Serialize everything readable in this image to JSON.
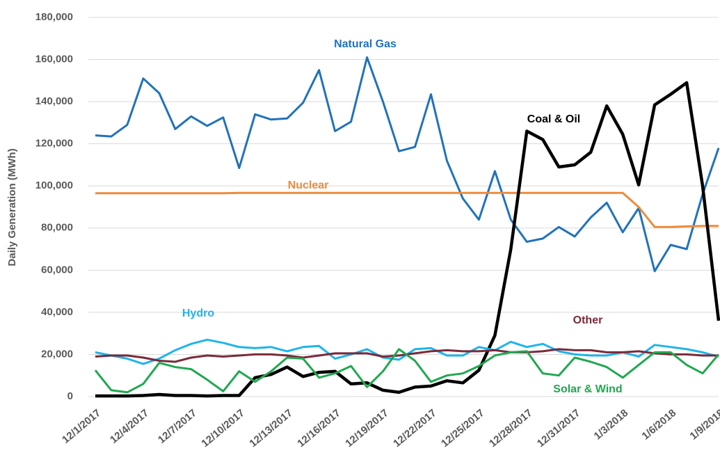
{
  "chart_data": {
    "type": "line",
    "y_label": "Daily Generation (MWh)",
    "categories": [
      "12/1/2017",
      null,
      null,
      "12/4/2017",
      null,
      null,
      "12/7/2017",
      null,
      null,
      "12/10/2017",
      null,
      null,
      "12/13/2017",
      null,
      null,
      "12/16/2017",
      null,
      null,
      "12/19/2017",
      null,
      null,
      "12/22/2017",
      null,
      null,
      "12/25/2017",
      null,
      null,
      "12/28/2017",
      null,
      null,
      "12/31/2017",
      null,
      null,
      "1/3/2018",
      null,
      null,
      "1/6/2018",
      null,
      null,
      "1/9/2018"
    ],
    "ylim": [
      0,
      180000
    ],
    "yticks": [
      0,
      {
        "value": 20000,
        "label": "20,000"
      },
      {
        "value": 40000,
        "label": "40,000"
      },
      {
        "value": 60000,
        "label": "60,000"
      },
      {
        "value": 80000,
        "label": "80,000"
      },
      {
        "value": 100000,
        "label": "100,000"
      },
      {
        "value": 120000,
        "label": "120,000"
      },
      {
        "value": 140000,
        "label": "140,000"
      },
      {
        "value": 160000,
        "label": "160,000"
      },
      {
        "value": 180000,
        "label": "180,000"
      }
    ],
    "grid": true,
    "series": [
      {
        "name": "Natural Gas",
        "color": "#2072ba",
        "values": [
          124000,
          123500,
          129000,
          151000,
          144000,
          127000,
          133000,
          128500,
          132500,
          108500,
          134000,
          131500,
          132000,
          139500,
          155000,
          126000,
          130500,
          161000,
          140000,
          116500,
          118500,
          143500,
          112000,
          94000,
          84000,
          107000,
          84000,
          73500,
          75000,
          80500,
          76000,
          85000,
          92000,
          78000,
          89500,
          59500,
          72000,
          70000,
          96000,
          118000
        ]
      },
      {
        "name": "Nuclear",
        "color": "#ed8b3c",
        "values": [
          96500,
          96500,
          96500,
          96500,
          96500,
          96500,
          96500,
          96500,
          96500,
          96700,
          96700,
          96700,
          96700,
          96700,
          96700,
          96700,
          96700,
          96700,
          96700,
          96700,
          96700,
          96700,
          96700,
          96700,
          96700,
          96700,
          96700,
          96700,
          96700,
          96700,
          96700,
          96700,
          96700,
          96700,
          90000,
          80500,
          80500,
          80800,
          81000,
          81000
        ]
      },
      {
        "name": "Coal & Oil",
        "color": "#000000",
        "values": [
          300,
          300,
          300,
          500,
          1000,
          500,
          500,
          300,
          500,
          500,
          9000,
          10500,
          14000,
          9500,
          11500,
          12000,
          6000,
          6500,
          3000,
          2000,
          4500,
          5000,
          7500,
          6500,
          12500,
          29000,
          70000,
          126000,
          122000,
          109000,
          110000,
          116000,
          138000,
          124500,
          100500,
          138500,
          143500,
          149000,
          100000,
          36000
        ]
      },
      {
        "name": "Hydro",
        "color": "#1eb4ec",
        "values": [
          21000,
          19500,
          18000,
          15500,
          18000,
          22000,
          25000,
          27000,
          25500,
          23500,
          23000,
          23500,
          21500,
          23500,
          24000,
          18000,
          20000,
          22500,
          18500,
          17500,
          22500,
          23000,
          19500,
          19500,
          23500,
          22000,
          26000,
          23500,
          25000,
          21500,
          20000,
          19500,
          19500,
          21000,
          19000,
          24500,
          23500,
          22500,
          21000,
          19000
        ]
      },
      {
        "name": "Other",
        "color": "#7a2a3a",
        "values": [
          19000,
          19500,
          19500,
          18500,
          17000,
          16500,
          18500,
          19500,
          19000,
          19500,
          20000,
          20000,
          19500,
          18500,
          19500,
          20500,
          20500,
          20500,
          19000,
          19500,
          20500,
          21500,
          22000,
          21500,
          21500,
          22000,
          21000,
          21000,
          21500,
          22500,
          22000,
          22000,
          21000,
          21000,
          21500,
          20500,
          20000,
          20000,
          19500,
          19500
        ]
      },
      {
        "name": "Solar & Wind",
        "color": "#1fa84f",
        "values": [
          12500,
          3000,
          2000,
          6000,
          16000,
          14000,
          13000,
          8000,
          2500,
          12000,
          7000,
          12000,
          18500,
          18000,
          9000,
          11000,
          14500,
          4500,
          12000,
          22500,
          17000,
          7000,
          10000,
          11000,
          14500,
          19500,
          21000,
          21500,
          11000,
          10000,
          18500,
          16500,
          14000,
          9000,
          15000,
          21000,
          21000,
          15000,
          11000,
          20000
        ]
      }
    ]
  }
}
